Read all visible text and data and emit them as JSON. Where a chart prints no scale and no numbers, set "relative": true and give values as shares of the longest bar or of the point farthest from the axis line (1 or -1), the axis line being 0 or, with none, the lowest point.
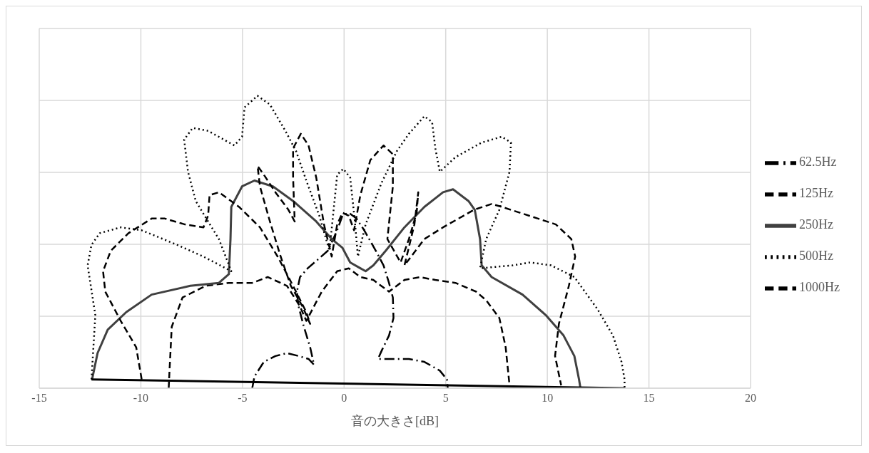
{
  "chart_data": {
    "type": "line",
    "xlabel": "音の大きさ[dB]",
    "relative": true,
    "xlim": [
      -15,
      20
    ],
    "xticks": [
      -15,
      -10,
      -5,
      0,
      5,
      10,
      15,
      20
    ],
    "grid": true,
    "legend": "right",
    "marker": "none",
    "series": [
      {
        "name": "62.5Hz",
        "color": "#000000",
        "line_style": "dashdot",
        "x": [
          -4.52,
          -4.41,
          -3.95,
          -3.38,
          -2.81,
          -2.24,
          -1.75,
          -1.48,
          -1.67,
          -1.98,
          -2.24,
          -2.32,
          -2.17,
          -1.79,
          -1.29,
          -0.8,
          -0.34,
          -0.08,
          0.23,
          0.61,
          0.99,
          1.56,
          1.94,
          2.21,
          2.4,
          2.43,
          2.21,
          1.86,
          1.67,
          2.21,
          3.19,
          3.95,
          4.71,
          5.06,
          5.1
        ],
        "values": [
          0,
          0.04,
          0.09,
          0.11,
          0.12,
          0.11,
          0.1,
          0.08,
          0.14,
          0.21,
          0.28,
          0.33,
          0.38,
          0.41,
          0.44,
          0.47,
          0.54,
          0.59,
          0.6,
          0.58,
          0.54,
          0.47,
          0.42,
          0.36,
          0.31,
          0.24,
          0.18,
          0.13,
          0.1,
          0.1,
          0.1,
          0.09,
          0.06,
          0.03,
          0
        ]
      },
      {
        "name": "125Hz",
        "color": "#000000",
        "line_style": "dashed",
        "x": [
          -8.63,
          -8.59,
          -8.48,
          -7.95,
          -6.81,
          -5.67,
          -4.52,
          -3.76,
          -2.81,
          -2.17,
          -1.86,
          -1.1,
          -0.34,
          0.23,
          0.8,
          1.44,
          2.21,
          2.97,
          3.73,
          4.49,
          5.48,
          6.5,
          7.0,
          7.64,
          7.95,
          8.14
        ],
        "values": [
          0,
          0.06,
          0.21,
          0.31,
          0.35,
          0.36,
          0.36,
          0.38,
          0.35,
          0.28,
          0.23,
          0.33,
          0.4,
          0.41,
          0.38,
          0.37,
          0.33,
          0.37,
          0.38,
          0.37,
          0.36,
          0.33,
          0.3,
          0.24,
          0.14,
          0.01
        ]
      },
      {
        "name": "250Hz",
        "color": "#404040",
        "line_style": "solid",
        "x": [
          -12.4,
          -12.13,
          -11.63,
          -10.72,
          -9.47,
          -7.57,
          -6.16,
          -5.67,
          -5.59,
          -5.55,
          -5.02,
          -4.41,
          -3.5,
          -2.51,
          -1.37,
          -0.61,
          -0.08,
          0.3,
          0.8,
          1.06,
          1.44,
          2.05,
          2.97,
          3.95,
          4.87,
          5.36,
          6.12,
          6.43,
          6.69,
          6.77,
          7.26,
          8.78,
          9.92,
          10.8,
          11.33,
          11.56,
          11.63
        ],
        "values": [
          0.03,
          0.12,
          0.2,
          0.26,
          0.32,
          0.35,
          0.36,
          0.39,
          0.51,
          0.62,
          0.69,
          0.71,
          0.69,
          0.64,
          0.57,
          0.51,
          0.48,
          0.43,
          0.41,
          0.4,
          0.42,
          0.47,
          0.55,
          0.62,
          0.67,
          0.68,
          0.64,
          0.61,
          0.51,
          0.42,
          0.38,
          0.32,
          0.25,
          0.18,
          0.11,
          0.03,
          0
        ]
      },
      {
        "name": "500Hz",
        "color": "#000000",
        "line_style": "dotted",
        "x": [
          -12.43,
          -12.24,
          -12.62,
          -12.43,
          -12.02,
          -10.99,
          -9.96,
          -8.21,
          -6.92,
          -5.55,
          -6.16,
          -6.69,
          -7.3,
          -7.68,
          -7.87,
          -7.45,
          -6.69,
          -5.4,
          -5.02,
          -4.9,
          -4.26,
          -3.65,
          -2.89,
          -2.36,
          -1.86,
          -1.22,
          -0.72,
          -0.34,
          -0.04,
          0.3,
          0.53,
          0.68,
          1.06,
          1.83,
          2.59,
          3.19,
          3.95,
          4.33,
          4.49,
          4.71,
          5.48,
          6.77,
          7.76,
          8.21,
          8.14,
          7.64,
          6.99,
          6.69,
          8.29,
          9.16,
          10.19,
          11.33,
          12.47,
          13.23,
          13.65,
          13.8,
          13.8
        ],
        "values": [
          0.03,
          0.25,
          0.42,
          0.49,
          0.53,
          0.55,
          0.54,
          0.49,
          0.45,
          0.4,
          0.51,
          0.57,
          0.64,
          0.74,
          0.85,
          0.89,
          0.88,
          0.83,
          0.86,
          0.96,
          1,
          0.97,
          0.88,
          0.81,
          0.71,
          0.59,
          0.47,
          0.73,
          0.75,
          0.72,
          0.57,
          0.45,
          0.56,
          0.7,
          0.81,
          0.87,
          0.93,
          0.91,
          0.82,
          0.74,
          0.79,
          0.84,
          0.86,
          0.84,
          0.74,
          0.61,
          0.51,
          0.41,
          0.42,
          0.43,
          0.42,
          0.38,
          0.27,
          0.18,
          0.09,
          0.03,
          0
        ]
      },
      {
        "name": "1000Hz",
        "color": "#000000",
        "line_style": "dashed",
        "x": [
          -9.96,
          -10.23,
          -10.99,
          -11.75,
          -11.86,
          -11.48,
          -10.61,
          -9.47,
          -8.82,
          -7.83,
          -6.92,
          -6.69,
          -6.62,
          -6.16,
          -5.17,
          -4.14,
          -3.27,
          -2.51,
          -1.86,
          -1.67,
          -2.05,
          -2.62,
          -3.12,
          -3.65,
          -4.14,
          -4.26,
          -3.95,
          -3.38,
          -2.74,
          -2.43,
          -2.51,
          -2.51,
          -2.13,
          -1.75,
          -1.37,
          -0.99,
          -0.61,
          -0.34,
          -0.08,
          0.23,
          0.49,
          0.8,
          1.29,
          1.94,
          2.4,
          2.4,
          2.13,
          2.78,
          3.19,
          3.57,
          3.65,
          3.46,
          2.97,
          3.95,
          4.87,
          6.39,
          7.26,
          7.76,
          9.54,
          10.42,
          11.18,
          11.37,
          11.06,
          10.57,
          10.38,
          10.68
        ],
        "values": [
          0.03,
          0.14,
          0.23,
          0.33,
          0.4,
          0.47,
          0.53,
          0.58,
          0.58,
          0.56,
          0.55,
          0.59,
          0.66,
          0.67,
          0.62,
          0.55,
          0.45,
          0.35,
          0.26,
          0.22,
          0.28,
          0.35,
          0.45,
          0.57,
          0.69,
          0.76,
          0.73,
          0.67,
          0.61,
          0.57,
          0.72,
          0.82,
          0.87,
          0.83,
          0.72,
          0.56,
          0.45,
          0.56,
          0.6,
          0.59,
          0.54,
          0.66,
          0.78,
          0.83,
          0.8,
          0.69,
          0.51,
          0.43,
          0.51,
          0.6,
          0.67,
          0.56,
          0.42,
          0.51,
          0.55,
          0.61,
          0.63,
          0.62,
          0.58,
          0.56,
          0.51,
          0.45,
          0.35,
          0.22,
          0.11,
          0.01
        ]
      },
      {
        "color": "#000000",
        "line_style": "solid",
        "x": [
          -12.43,
          13.8
        ],
        "values": [
          0.03,
          0
        ]
      }
    ]
  }
}
